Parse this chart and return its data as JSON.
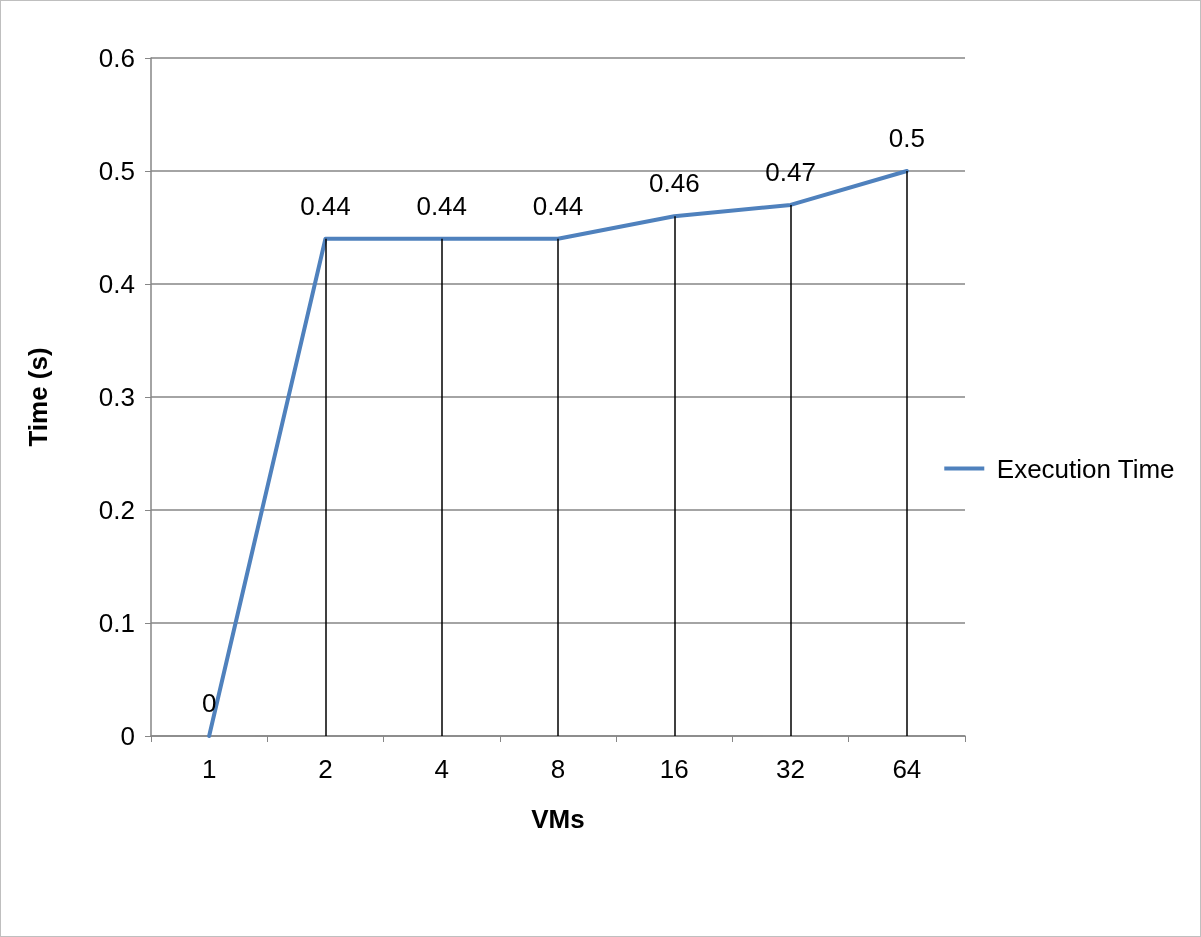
{
  "chart_data": {
    "type": "line",
    "xlabel": "VMs",
    "ylabel": "Time (s)",
    "categories": [
      "1",
      "2",
      "4",
      "8",
      "16",
      "32",
      "64"
    ],
    "series": [
      {
        "name": "Execution Time",
        "color": "#4f81bd",
        "values": [
          0,
          0.44,
          0.44,
          0.44,
          0.46,
          0.47,
          0.5
        ]
      }
    ],
    "ylim": [
      0,
      0.6
    ],
    "yticks": [
      0,
      0.1,
      0.2,
      0.3,
      0.4,
      0.5,
      0.6
    ],
    "grid": true,
    "legend": "right",
    "marker": "none",
    "line_style": "solid",
    "data_labels": true
  }
}
